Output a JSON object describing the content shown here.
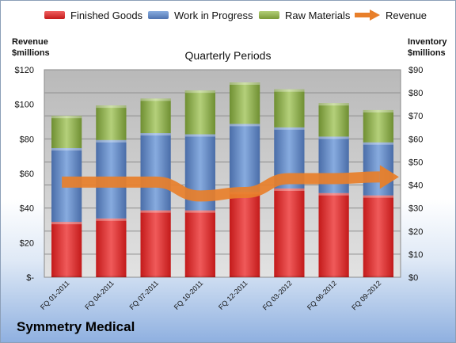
{
  "chart_data": {
    "type": "bar",
    "title": "Quarterly Periods",
    "company": "Symmetry Medical",
    "legend_position": "top",
    "categories": [
      "FQ 01-2011",
      "FQ 04-2011",
      "FQ 07-2011",
      "FQ 10-2011",
      "FQ 12-2011",
      "FQ 03-2012",
      "FQ 06-2012",
      "FQ 09-2012"
    ],
    "series": [
      {
        "name": "Finished Goods",
        "values": [
          24,
          25.5,
          29,
          29,
          37,
          38.5,
          36.5,
          35.5
        ],
        "color": "#e03030",
        "axis": "right"
      },
      {
        "name": "Work in Progress",
        "values": [
          32,
          34,
          33.5,
          33,
          29.5,
          26.5,
          24.5,
          23
        ],
        "color": "#5f86c6",
        "axis": "right"
      },
      {
        "name": "Raw Materials",
        "values": [
          14,
          15,
          15,
          19,
          18,
          16.5,
          14.5,
          14
        ],
        "color": "#8fb04a",
        "axis": "right"
      },
      {
        "name": "Revenue",
        "type": "line",
        "values": [
          55,
          55,
          55,
          47,
          49,
          57,
          57,
          58
        ],
        "color": "#e87f2a",
        "axis": "left"
      }
    ],
    "left_axis": {
      "label_lines": [
        "Revenue",
        "$millions"
      ],
      "ylim": [
        0,
        120
      ],
      "ticks": [
        0,
        20,
        40,
        60,
        80,
        100,
        120
      ],
      "tick_labels": [
        "$-",
        "$20",
        "$40",
        "$60",
        "$80",
        "$100",
        "$120"
      ]
    },
    "right_axis": {
      "label_lines": [
        "Inventory",
        "$millions"
      ],
      "ylim": [
        0,
        90
      ],
      "ticks": [
        0,
        10,
        20,
        30,
        40,
        50,
        60,
        70,
        80,
        90
      ],
      "tick_labels": [
        "$0",
        "$10",
        "$20",
        "$30",
        "$40",
        "$50",
        "$60",
        "$70",
        "$80",
        "$90"
      ]
    },
    "grid": true
  }
}
